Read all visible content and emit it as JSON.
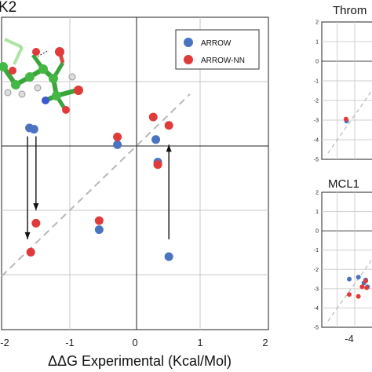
{
  "chart_data": [
    {
      "type": "scatter",
      "title": "K2",
      "xlabel": "ΔΔG Experimental (Kcal/Mol)",
      "xlim": [
        -2,
        2
      ],
      "ylim": [
        -2,
        2
      ],
      "xticks": [
        "-2",
        "-1",
        "0",
        "1",
        "2"
      ],
      "grid": true,
      "legend_position": "top-right",
      "colors": {
        "ARROW": "#4a74c0",
        "ARROW-NN": "#e03a3a"
      },
      "series": [
        {
          "name": "ARROW",
          "points": [
            [
              -1.62,
              0.28
            ],
            [
              -1.55,
              0.26
            ],
            [
              -0.27,
              0.02
            ],
            [
              0.32,
              0.1
            ],
            [
              0.35,
              -0.25
            ],
            [
              -0.55,
              -1.3
            ],
            [
              0.52,
              -1.72
            ]
          ]
        },
        {
          "name": "ARROW-NN",
          "points": [
            [
              -1.52,
              -1.2
            ],
            [
              -1.6,
              -1.65
            ],
            [
              -0.27,
              0.14
            ],
            [
              0.28,
              0.45
            ],
            [
              0.52,
              0.32
            ],
            [
              0.35,
              -0.29
            ],
            [
              -0.55,
              -1.16
            ]
          ]
        }
      ],
      "arrows": [
        {
          "from": [
            -1.65,
            0.15
          ],
          "to": [
            -1.65,
            -1.45
          ]
        },
        {
          "from": [
            -1.52,
            0.15
          ],
          "to": [
            -1.52,
            -1.0
          ]
        },
        {
          "from": [
            0.52,
            -1.45
          ],
          "to": [
            0.52,
            0.02
          ]
        }
      ]
    },
    {
      "type": "scatter",
      "title": "Throm",
      "xlim": [
        -4,
        2
      ],
      "ylim": [
        -5,
        2
      ],
      "yticks": [
        "2",
        "1",
        "0",
        "-1",
        "-2",
        "-3",
        "-4",
        "-5"
      ],
      "series": [
        {
          "name": "ARROW",
          "points": [
            [
              -1.3,
              -3.05
            ]
          ]
        },
        {
          "name": "ARROW-NN",
          "points": [
            [
              -1.35,
              -2.95
            ]
          ]
        }
      ]
    },
    {
      "type": "scatter",
      "title": "MCL1",
      "xlim": [
        -5.5,
        -2.5
      ],
      "ylim": [
        -5,
        2
      ],
      "xticks": [
        "-4"
      ],
      "yticks": [
        "2",
        "1",
        "0",
        "-1",
        "-2",
        "-3",
        "-4",
        "-5"
      ],
      "series": [
        {
          "name": "ARROW",
          "points": [
            [
              -4.0,
              -2.5
            ],
            [
              -3.5,
              -2.4
            ],
            [
              -3.1,
              -2.55
            ],
            [
              -3.0,
              -2.9
            ],
            [
              -3.2,
              -2.7
            ]
          ]
        },
        {
          "name": "ARROW-NN",
          "points": [
            [
              -4.0,
              -3.3
            ],
            [
              -3.5,
              -3.4
            ],
            [
              -3.1,
              -2.6
            ],
            [
              -3.05,
              -2.95
            ],
            [
              -3.3,
              -2.9
            ]
          ]
        }
      ]
    }
  ],
  "legend": {
    "items": [
      "ARROW",
      "ARROW-NN"
    ]
  }
}
